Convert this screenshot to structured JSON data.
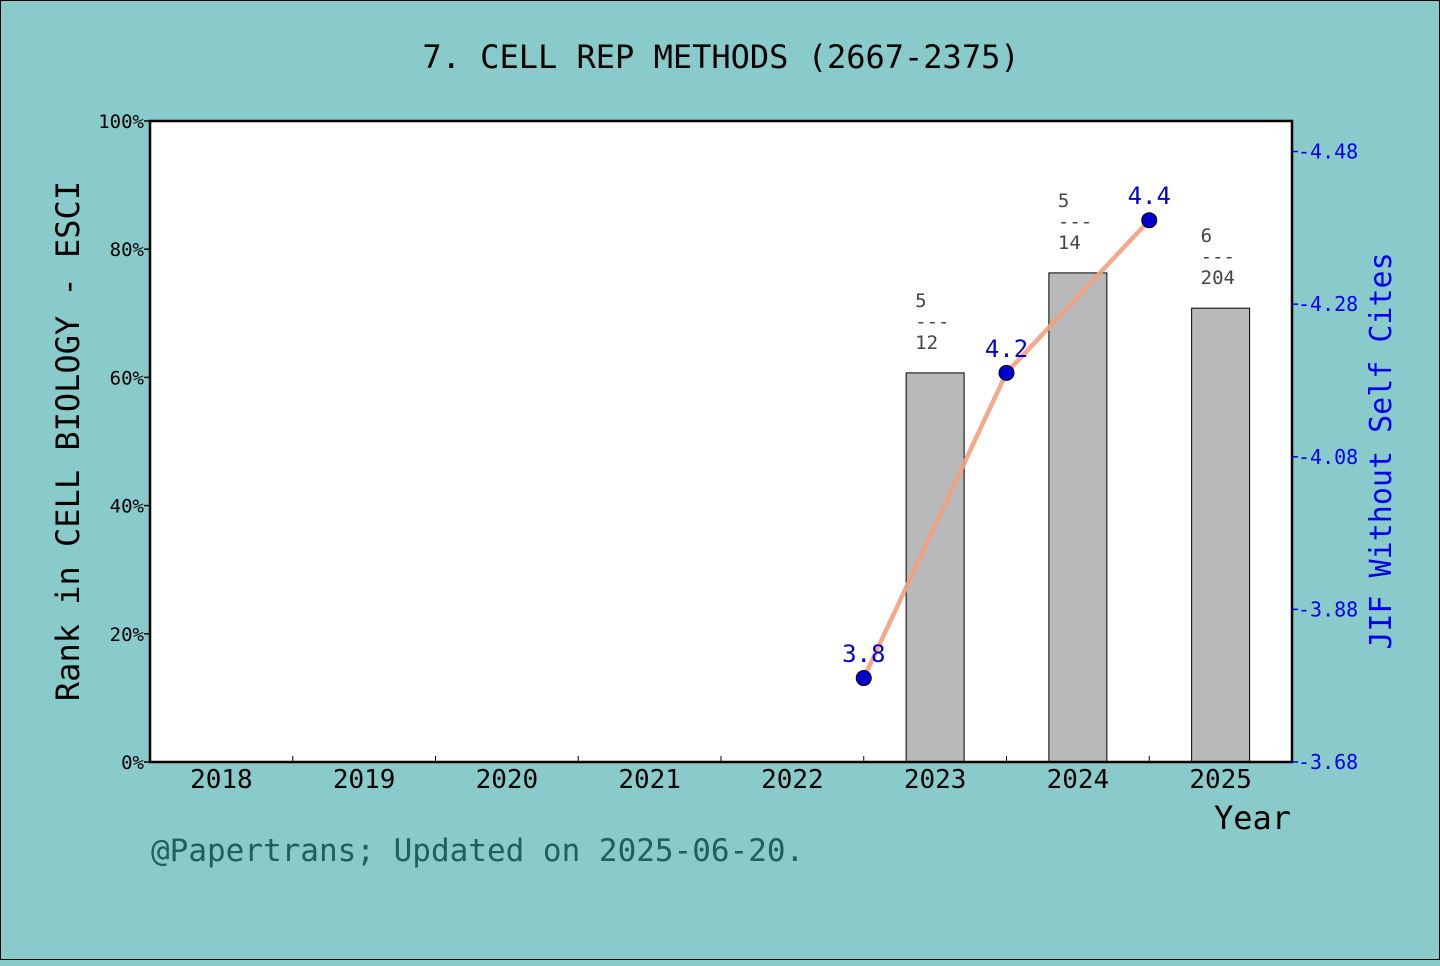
{
  "chart_data": {
    "type": "bar",
    "title": "7. CELL REP METHODS (2667-2375)",
    "xlabel": "Year",
    "ylabel": "Rank in CELL BIOLOGY - ESCI",
    "y2label": "JIF Without Self Cites",
    "categories": [
      "2018",
      "2019",
      "2020",
      "2021",
      "2022",
      "2023",
      "2024",
      "2025"
    ],
    "ylim": [
      0,
      100
    ],
    "y_ticks": [
      "0%",
      "20%",
      "40%",
      "60%",
      "80%",
      "100%"
    ],
    "y2lim": [
      3.68,
      4.52
    ],
    "y2_ticks": [
      "3.68",
      "3.88",
      "4.08",
      "4.28",
      "4.48"
    ],
    "bars": {
      "color": "#b8b9bb",
      "values": [
        null,
        null,
        null,
        null,
        null,
        60.7,
        76.3,
        70.8
      ],
      "rank_labels": [
        null,
        null,
        null,
        null,
        null,
        {
          "rank": "5",
          "sep": "---",
          "total": "12"
        },
        {
          "rank": "5",
          "sep": "---",
          "total": "14"
        },
        {
          "rank": "6",
          "sep": "---",
          "total": "204"
        }
      ]
    },
    "line": {
      "color": "#f4a080",
      "marker_color": "#0000cc",
      "values": [
        null,
        null,
        null,
        null,
        null,
        3.79,
        4.19,
        4.39
      ],
      "labels": [
        null,
        null,
        null,
        null,
        null,
        "3.8",
        "4.2",
        "4.4"
      ]
    },
    "grid": false
  },
  "footer": "@Papertrans; Updated on 2025-06-20."
}
